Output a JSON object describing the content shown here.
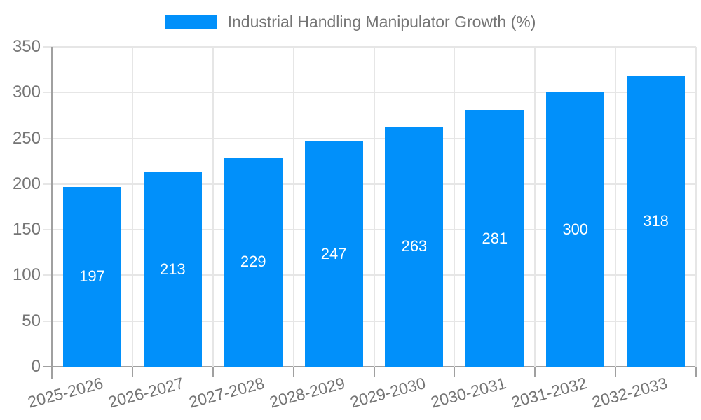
{
  "legend": {
    "label": "Industrial Handling Manipulator Growth (%)"
  },
  "chart_data": {
    "type": "bar",
    "title": "Industrial Handling Manipulator Growth (%)",
    "categories": [
      "2025-2026",
      "2026-2027",
      "2027-2028",
      "2028-2029",
      "2029-2030",
      "2030-2031",
      "2031-2032",
      "2032-2033"
    ],
    "values": [
      197,
      213,
      229,
      247,
      263,
      281,
      300,
      318
    ],
    "value_labels": [
      "197",
      "213",
      "229",
      "247",
      "263",
      "281",
      "300",
      "318"
    ],
    "xlabel": "",
    "ylabel": "",
    "ylim": [
      0,
      350
    ],
    "ytick_step": 50,
    "ytick_labels": [
      "0",
      "50",
      "100",
      "150",
      "200",
      "250",
      "300",
      "350"
    ],
    "grid": true,
    "legend_position": "top-center",
    "colors": {
      "bar": "#0190fa",
      "bar_value_text": "#ffffff",
      "axis_text": "#757575",
      "gridline": "#e6e6e6",
      "axis_line": "#a0a0a0",
      "background": "#ffffff"
    }
  }
}
